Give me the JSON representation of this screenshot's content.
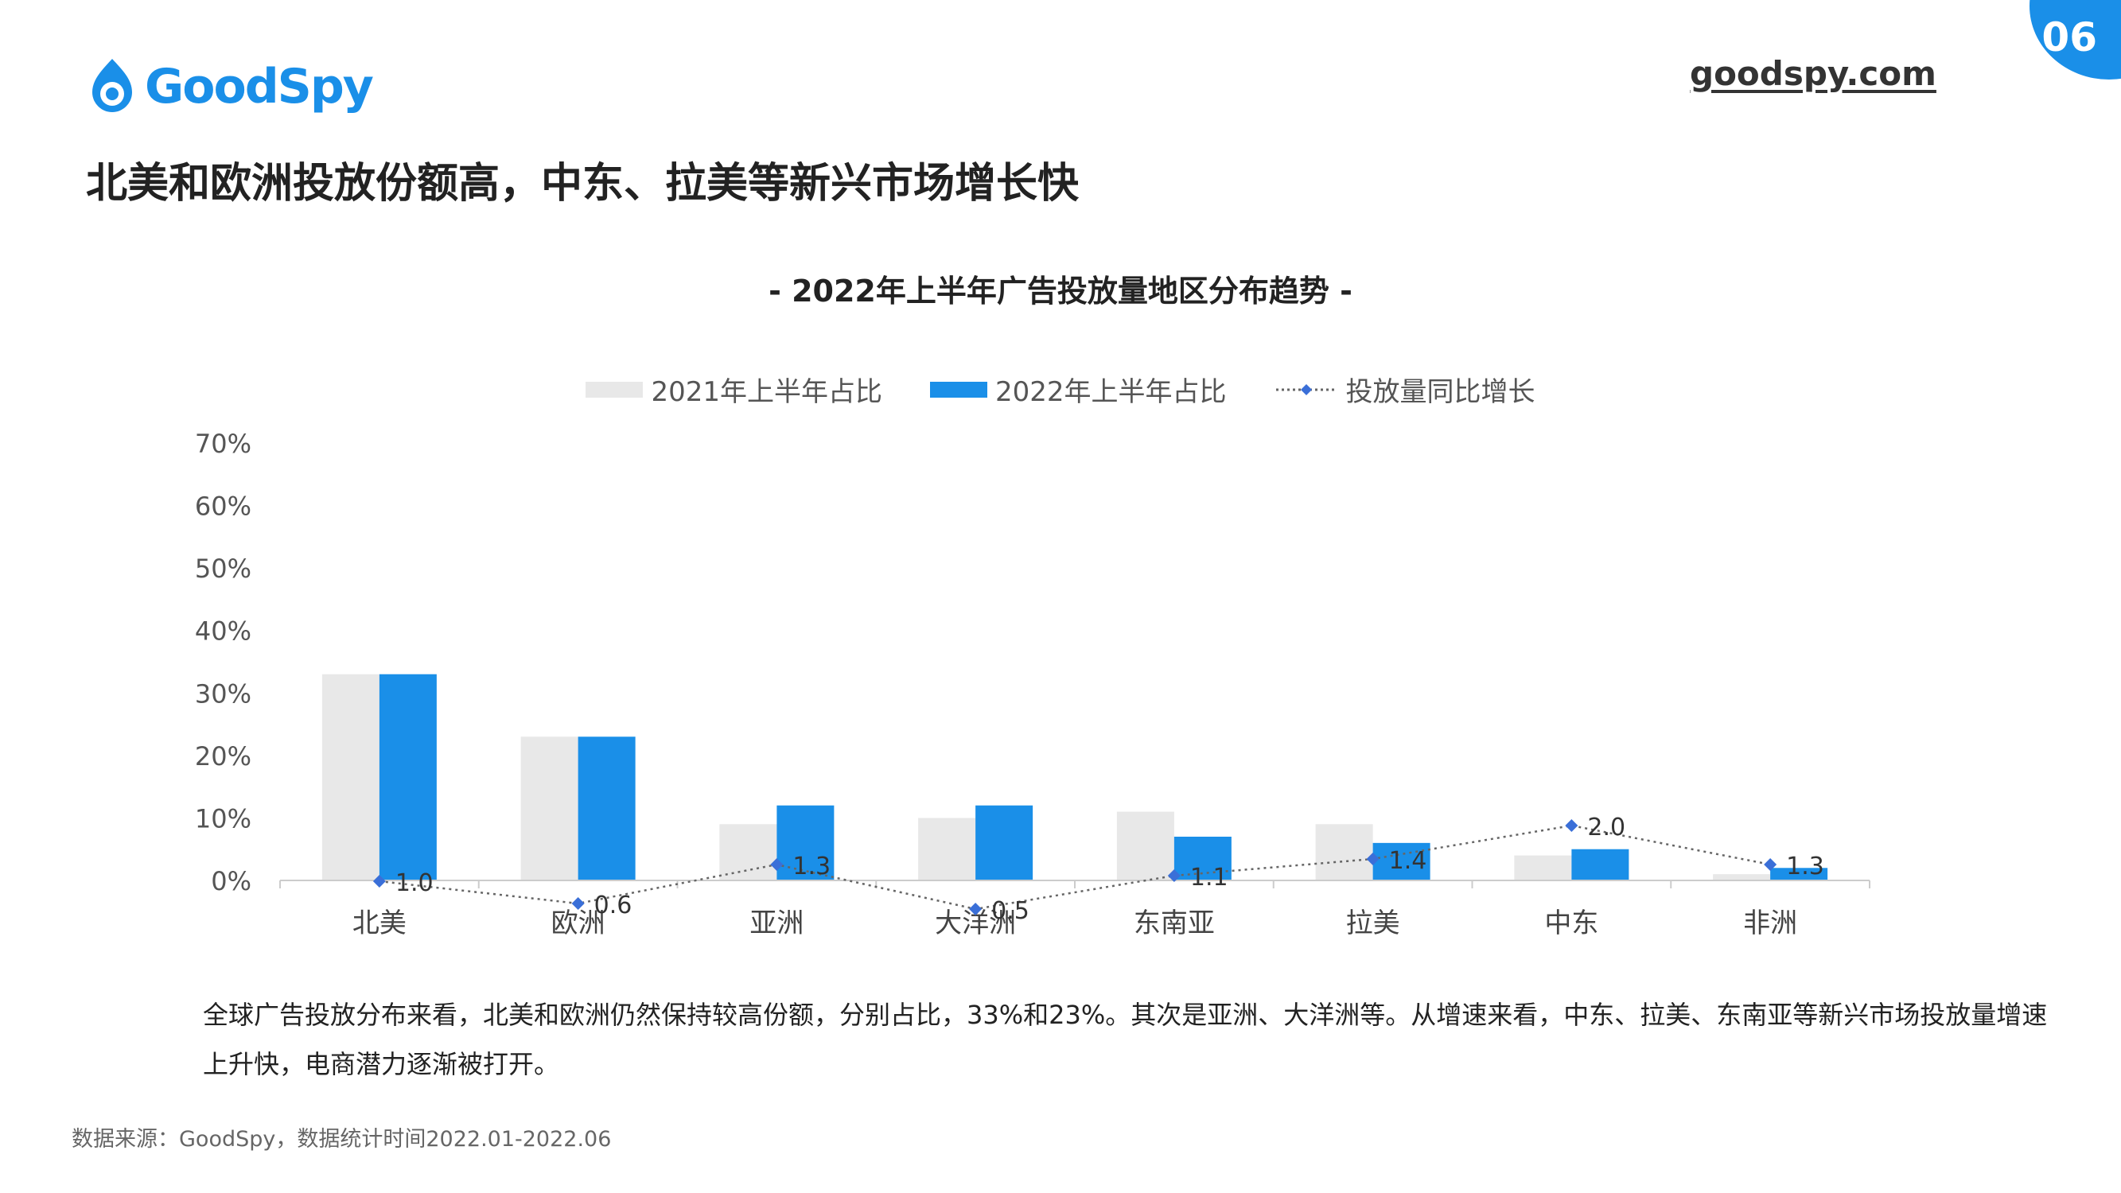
{
  "page_number": "06",
  "brand": {
    "logo_text": "GoodSpy",
    "site": "goodspy.com",
    "color": "#1a8fe8"
  },
  "title": "北美和欧洲投放份额高，中东、拉美等新兴市场增长快",
  "chart_title": "- 2022年上半年广告投放量地区分布趋势 -",
  "chart_data": {
    "type": "bar",
    "categories": [
      "北美",
      "欧洲",
      "亚洲",
      "大洋洲",
      "东南亚",
      "拉美",
      "中东",
      "非洲"
    ],
    "series": [
      {
        "name": "2021年上半年占比",
        "type": "bar",
        "color": "#e8e8e8",
        "values": [
          33,
          23,
          9,
          10,
          11,
          9,
          4,
          1
        ]
      },
      {
        "name": "2022年上半年占比",
        "type": "bar",
        "color": "#1a8fe8",
        "values": [
          33,
          23,
          12,
          12,
          7,
          6,
          5,
          2
        ]
      },
      {
        "name": "投放量同比增长",
        "type": "line",
        "style": "dotted",
        "color": "#3a6fd8",
        "values": [
          1.0,
          0.6,
          1.3,
          0.5,
          1.1,
          1.4,
          2.0,
          1.3
        ],
        "labels": [
          "1.0",
          "0.6",
          "1.3",
          "0.5",
          "1.1",
          "1.4",
          "2.0",
          "1.3"
        ]
      }
    ],
    "yticks": [
      "0%",
      "10%",
      "20%",
      "30%",
      "40%",
      "50%",
      "60%",
      "70%"
    ],
    "ylim": [
      0,
      70
    ],
    "legend_position": "top"
  },
  "description": "全球广告投放分布来看，北美和欧洲仍然保持较高份额，分别占比，33%和23%。其次是亚洲、大洋洲等。从增速来看，中东、拉美、东南亚等新兴市场投放量增速上升快，电商潜力逐渐被打开。",
  "source": "数据来源：GoodSpy，数据统计时间2022.01-2022.06"
}
